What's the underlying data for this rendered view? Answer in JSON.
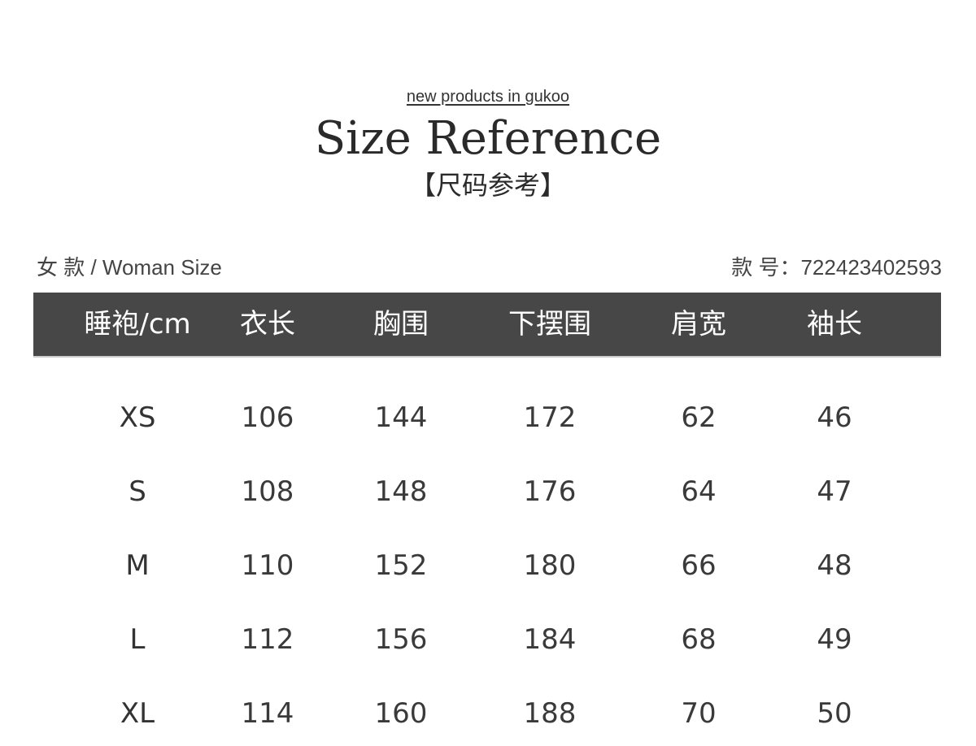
{
  "header": {
    "tagline": "new products in gukoo",
    "title": "Size Reference",
    "subtitle": "【尺码参考】"
  },
  "info": {
    "category": "女 款 / Woman Size",
    "style_number": "款 号：722423402593"
  },
  "table": {
    "columns": [
      "睡袍/cm",
      "衣长",
      "胸围",
      "下摆围",
      "肩宽",
      "袖长"
    ],
    "rows": [
      [
        "XS",
        "106",
        "144",
        "172",
        "62",
        "46"
      ],
      [
        "S",
        "108",
        "148",
        "176",
        "64",
        "47"
      ],
      [
        "M",
        "110",
        "152",
        "180",
        "66",
        "48"
      ],
      [
        "L",
        "112",
        "156",
        "184",
        "68",
        "49"
      ],
      [
        "XL",
        "114",
        "160",
        "188",
        "70",
        "50"
      ]
    ]
  },
  "colors": {
    "header_bg": "#474747",
    "text": "#333333"
  }
}
